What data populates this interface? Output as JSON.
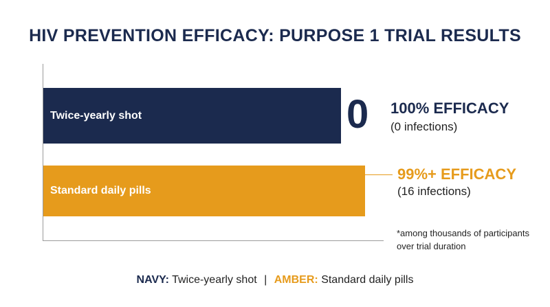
{
  "chart_data": {
    "type": "bar",
    "orientation": "horizontal",
    "title": "HIV PREVENTION EFFICACY: PURPOSE 1 TRIAL RESULTS",
    "xlabel": "",
    "ylabel": "",
    "grid": false,
    "legend": "bottom",
    "categories": [
      "Twice-yearly shot",
      "Standard daily pills"
    ],
    "series": [
      {
        "name": "Efficacy",
        "values": [
          100,
          99
        ],
        "colors": [
          "#1b2a4e",
          "#e69b1c"
        ]
      }
    ],
    "xlim": [
      0,
      100
    ],
    "annotations": {
      "shot": {
        "big": "0",
        "headline": "100% EFFICACY",
        "sub": "(0 infections)"
      },
      "pills": {
        "headline": "99%+ EFFICACY",
        "sub": "(16 infections)"
      }
    },
    "footnote": "*among thousands of participants over trial duration",
    "legend_entries": {
      "navy_key": "NAVY:",
      "navy_text": "Twice-yearly shot",
      "separator": "|",
      "amber_key": "AMBER:",
      "amber_text": "Standard daily pills"
    }
  },
  "colors": {
    "navy": "#1b2a4e",
    "amber": "#e69b1c"
  }
}
